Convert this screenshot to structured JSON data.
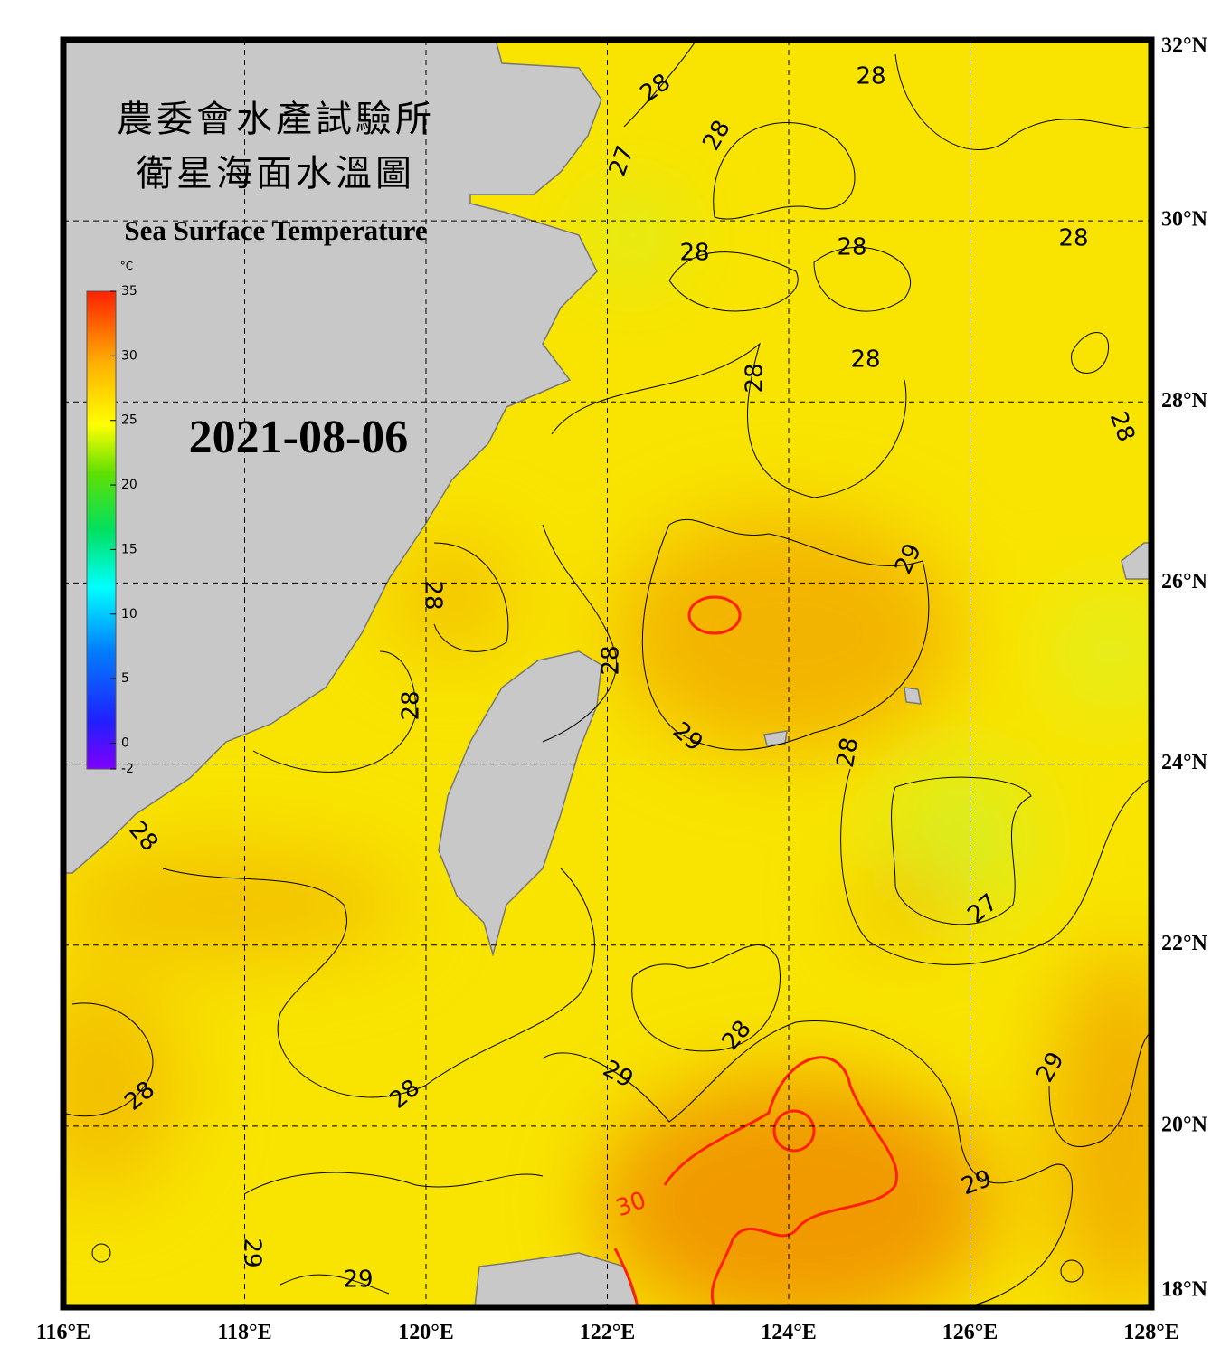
{
  "header": {
    "title_lines": [
      "農委會水產試驗所",
      "衛星海面水溫圖"
    ],
    "subtitle": "Sea Surface Temperature",
    "date": "2021-08-06"
  },
  "colorbar": {
    "unit": "°C",
    "range": [
      -2,
      35
    ],
    "ticks": [
      35,
      30,
      25,
      20,
      15,
      10,
      5,
      0,
      -2
    ]
  },
  "axes": {
    "lon_range": [
      116,
      128
    ],
    "lat_range": [
      18,
      32
    ],
    "lon_ticks": [
      {
        "value": 116,
        "label": "116°E"
      },
      {
        "value": 118,
        "label": "118°E"
      },
      {
        "value": 120,
        "label": "120°E"
      },
      {
        "value": 122,
        "label": "122°E"
      },
      {
        "value": 124,
        "label": "124°E"
      },
      {
        "value": 126,
        "label": "126°E"
      },
      {
        "value": 128,
        "label": "128°E"
      }
    ],
    "lat_ticks": [
      {
        "value": 32,
        "label": "32°N"
      },
      {
        "value": 30,
        "label": "30°N"
      },
      {
        "value": 28,
        "label": "28°N"
      },
      {
        "value": 26,
        "label": "26°N"
      },
      {
        "value": 24,
        "label": "24°N"
      },
      {
        "value": 22,
        "label": "22°N"
      },
      {
        "value": 20,
        "label": "20°N"
      },
      {
        "value": 18,
        "label": "18°N"
      }
    ]
  },
  "contour_labels": [
    "28",
    "28",
    "28",
    "27",
    "28",
    "28",
    "28",
    "28",
    "28",
    "28",
    "29",
    "28",
    "28",
    "29",
    "28",
    "28",
    "28",
    "27",
    "28",
    "29",
    "28",
    "28",
    "29",
    "29",
    "30",
    "29",
    "29"
  ]
}
